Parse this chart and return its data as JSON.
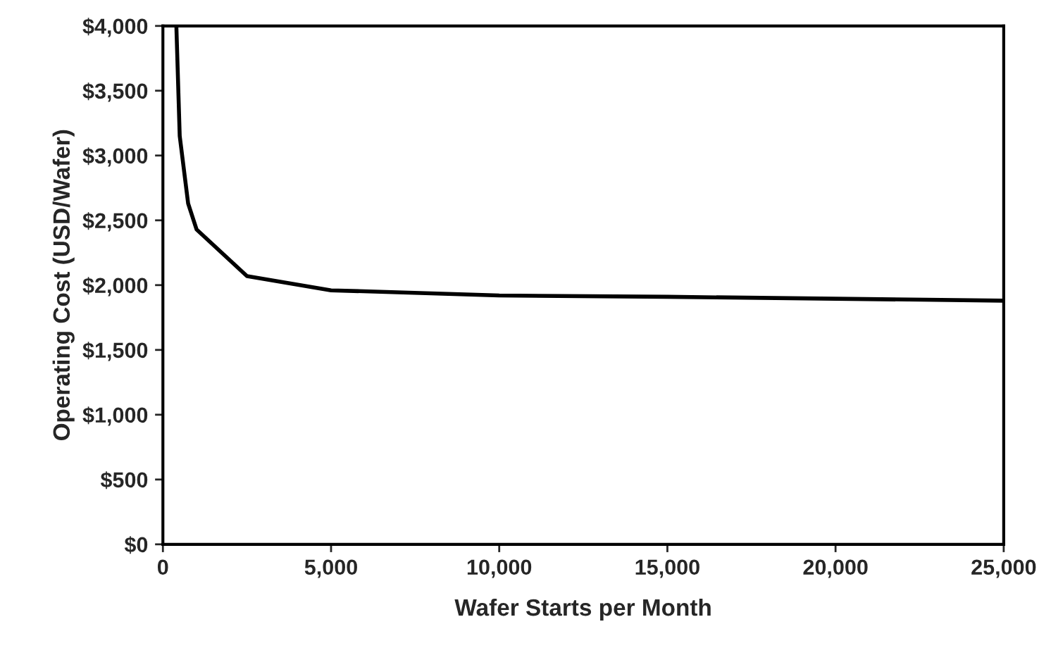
{
  "chart_data": {
    "type": "line",
    "xlabel": "Wafer Starts per Month",
    "ylabel": "Operating Cost (USD/Wafer)",
    "x": [
      400,
      500,
      750,
      1000,
      2500,
      5000,
      10000,
      15000,
      20000,
      25000
    ],
    "series": [
      {
        "color": "#000000",
        "values": [
          4000,
          3150,
          2630,
          2430,
          2070,
          1960,
          1920,
          1910,
          1895,
          1880
        ]
      }
    ],
    "xlim": [
      0,
      25000
    ],
    "ylim": [
      0,
      4000
    ],
    "xticks": [
      0,
      {
        "value": 5000,
        "label": "5,000"
      },
      {
        "value": 10000,
        "label": "10,000"
      },
      {
        "value": 15000,
        "label": "15,000"
      },
      {
        "value": 20000,
        "label": "20,000"
      },
      {
        "value": 25000,
        "label": "25,000"
      }
    ],
    "yticks": [
      {
        "value": 0,
        "label": "$0"
      },
      {
        "value": 500,
        "label": "$500"
      },
      {
        "value": 1000,
        "label": "$1,000"
      },
      {
        "value": 1500,
        "label": "$1,500"
      },
      {
        "value": 2000,
        "label": "$2,000"
      },
      {
        "value": 2500,
        "label": "$2,500"
      },
      {
        "value": 3000,
        "label": "$3,000"
      },
      {
        "value": 3500,
        "label": "$3,500"
      },
      {
        "value": 4000,
        "label": "$4,000"
      }
    ],
    "grid": false,
    "legend": false
  }
}
